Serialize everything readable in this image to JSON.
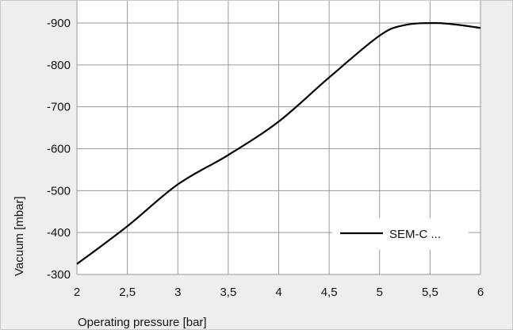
{
  "chart_data": {
    "type": "line",
    "title": "",
    "xlabel": "Operating pressure [bar]",
    "ylabel": "Vacuum [mbar]",
    "x_ticks": [
      "2",
      "2,5",
      "3",
      "3,5",
      "4",
      "4,5",
      "5",
      "5,5",
      "6"
    ],
    "y_ticks": [
      "-900",
      "-800",
      "-700",
      "-600",
      "-500",
      "-400",
      "-300"
    ],
    "xlim": [
      2,
      6
    ],
    "ylim": [
      -300,
      -900
    ],
    "grid": true,
    "legend_position": "bottom-right",
    "series": [
      {
        "name": "SEM-C ...",
        "x": [
          2,
          2.5,
          3,
          3.5,
          4,
          4.5,
          5,
          5.25,
          5.55,
          5.8,
          6
        ],
        "y": [
          -325,
          -415,
          -515,
          -585,
          -665,
          -770,
          -870,
          -895,
          -900,
          -895,
          -888
        ]
      }
    ]
  },
  "colors": {
    "plot_background": "#ffffff",
    "figure_background": "#eeeeee",
    "grid": "#9a9a9a",
    "line": "#000000"
  }
}
